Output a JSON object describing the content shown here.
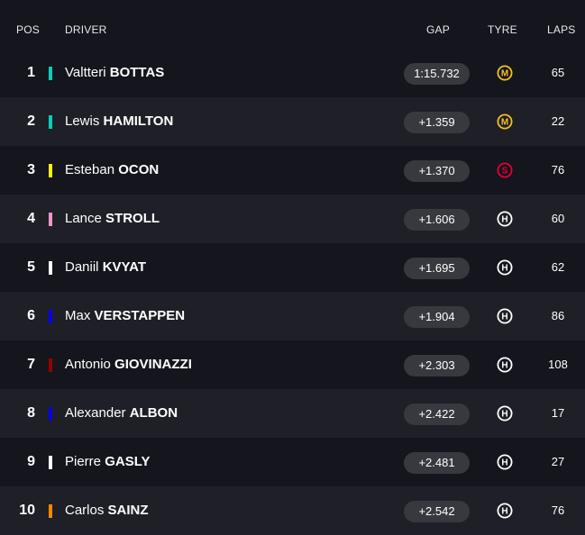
{
  "header": {
    "pos": "POS",
    "driver": "DRIVER",
    "gap": "GAP",
    "tyre": "TYRE",
    "laps": "LAPS"
  },
  "rows": [
    {
      "pos": "1",
      "first": "Valtteri",
      "last": "BOTTAS",
      "team_color": "#00d2be",
      "gap": "1:15.732",
      "tyre": {
        "letter": "M",
        "type": "medium",
        "color": "#f3c221"
      },
      "laps": "65"
    },
    {
      "pos": "2",
      "first": "Lewis",
      "last": "HAMILTON",
      "team_color": "#00d2be",
      "gap": "+1.359",
      "tyre": {
        "letter": "M",
        "type": "medium",
        "color": "#f3c221"
      },
      "laps": "22"
    },
    {
      "pos": "3",
      "first": "Esteban",
      "last": "OCON",
      "team_color": "#fff500",
      "gap": "+1.370",
      "tyre": {
        "letter": "S",
        "type": "soft",
        "color": "#e8002d"
      },
      "laps": "76"
    },
    {
      "pos": "4",
      "first": "Lance",
      "last": "STROLL",
      "team_color": "#f596c8",
      "gap": "+1.606",
      "tyre": {
        "letter": "H",
        "type": "hard",
        "color": "#ffffff"
      },
      "laps": "60"
    },
    {
      "pos": "5",
      "first": "Daniil",
      "last": "KVYAT",
      "team_color": "#ffffff",
      "gap": "+1.695",
      "tyre": {
        "letter": "H",
        "type": "hard",
        "color": "#ffffff"
      },
      "laps": "62"
    },
    {
      "pos": "6",
      "first": "Max",
      "last": "VERSTAPPEN",
      "team_color": "#0600ef",
      "gap": "+1.904",
      "tyre": {
        "letter": "H",
        "type": "hard",
        "color": "#ffffff"
      },
      "laps": "86"
    },
    {
      "pos": "7",
      "first": "Antonio",
      "last": "GIOVINAZZI",
      "team_color": "#960000",
      "gap": "+2.303",
      "tyre": {
        "letter": "H",
        "type": "hard",
        "color": "#ffffff"
      },
      "laps": "108"
    },
    {
      "pos": "8",
      "first": "Alexander",
      "last": "ALBON",
      "team_color": "#0600ef",
      "gap": "+2.422",
      "tyre": {
        "letter": "H",
        "type": "hard",
        "color": "#ffffff"
      },
      "laps": "17"
    },
    {
      "pos": "9",
      "first": "Pierre",
      "last": "GASLY",
      "team_color": "#ffffff",
      "gap": "+2.481",
      "tyre": {
        "letter": "H",
        "type": "hard",
        "color": "#ffffff"
      },
      "laps": "27"
    },
    {
      "pos": "10",
      "first": "Carlos",
      "last": "SAINZ",
      "team_color": "#ff8700",
      "gap": "+2.542",
      "tyre": {
        "letter": "H",
        "type": "hard",
        "color": "#ffffff"
      },
      "laps": "76"
    }
  ]
}
